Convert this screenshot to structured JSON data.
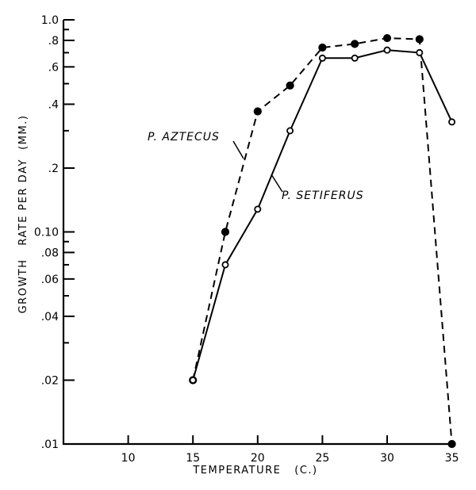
{
  "chart_data": {
    "type": "line",
    "title": "",
    "xlabel": "TEMPERATURE   (C.)",
    "ylabel": "GROWTH   RATE PER DAY  (MM.)",
    "xlim": [
      5,
      35
    ],
    "ylim": [
      0.01,
      1.0
    ],
    "yscale": "log",
    "grid": false,
    "x_ticks": [
      10,
      15,
      20,
      25,
      30,
      35
    ],
    "x_tick_labels": [
      "10",
      "15",
      "20",
      "25",
      "30",
      "35"
    ],
    "y_ticks": [
      1.0,
      0.8,
      0.6,
      0.4,
      0.2,
      0.1,
      0.08,
      0.06,
      0.04,
      0.02,
      0.01
    ],
    "y_tick_labels": [
      "1.0",
      ".8",
      ".6",
      ".4",
      ".2",
      "0.10",
      ".08",
      ".06",
      ".04",
      ".02",
      ".01"
    ],
    "y_minor_ticks": [
      0.9,
      0.7,
      0.5,
      0.3,
      0.09,
      0.07,
      0.05,
      0.03
    ],
    "series": [
      {
        "name": "P.  AZTECUS",
        "style": "dashed",
        "marker": "filled-circle",
        "x": [
          15,
          17.5,
          20,
          22.5,
          25,
          27.5,
          30,
          32.5,
          35
        ],
        "y": [
          0.02,
          0.1,
          0.37,
          0.49,
          0.74,
          0.77,
          0.82,
          0.81,
          0.01
        ]
      },
      {
        "name": "P.  SETIFERUS",
        "style": "solid",
        "marker": "open-circle",
        "x": [
          15,
          17.5,
          20,
          22.5,
          25,
          27.5,
          30,
          32.5,
          35
        ],
        "y": [
          0.02,
          0.07,
          0.128,
          0.3,
          0.66,
          0.66,
          0.72,
          0.7,
          0.33
        ]
      }
    ],
    "colors": {
      "ink": "#000000",
      "background": "#ffffff"
    }
  }
}
